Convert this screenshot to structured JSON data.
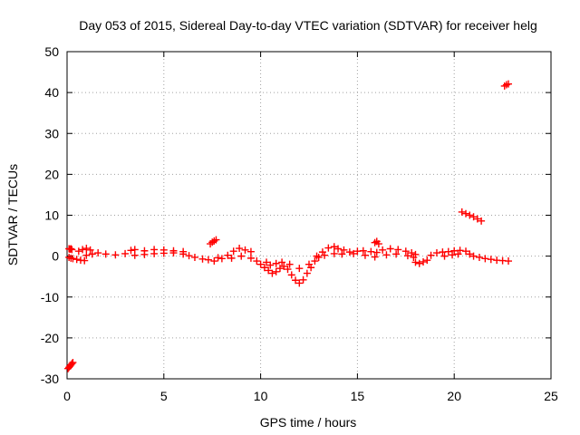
{
  "chart_data": {
    "type": "scatter",
    "title": "Day 053 of 2015, Sidereal Day-to-day VTEC variation (SDTVAR) for receiver helg",
    "xlabel": "GPS time / hours",
    "ylabel": "SDTVAR / TECUs",
    "xlim": [
      0,
      25
    ],
    "ylim": [
      -30,
      50
    ],
    "xticks": [
      0,
      5,
      10,
      15,
      20,
      25
    ],
    "yticks": [
      -30,
      -20,
      -10,
      0,
      10,
      20,
      30,
      40,
      50
    ],
    "grid": true,
    "marker": "plus",
    "series": [
      {
        "name": "SDTVAR",
        "color": "#ff0000",
        "points": [
          [
            0.05,
            -27.5
          ],
          [
            0.1,
            -27.2
          ],
          [
            0.15,
            -26.9
          ],
          [
            0.2,
            -26.6
          ],
          [
            0.25,
            -26.3
          ],
          [
            0.3,
            -26.0
          ],
          [
            0.1,
            1.8
          ],
          [
            0.15,
            1.7
          ],
          [
            0.2,
            1.8
          ],
          [
            0.25,
            1.6
          ],
          [
            0.1,
            -0.3
          ],
          [
            0.2,
            -0.5
          ],
          [
            0.3,
            -0.6
          ],
          [
            0.5,
            -0.8
          ],
          [
            0.7,
            -1.0
          ],
          [
            0.9,
            -1.1
          ],
          [
            0.6,
            1.2
          ],
          [
            0.8,
            1.6
          ],
          [
            1.0,
            1.9
          ],
          [
            1.2,
            1.5
          ],
          [
            1.0,
            0.2
          ],
          [
            1.3,
            0.5
          ],
          [
            1.6,
            0.8
          ],
          [
            2.0,
            0.5
          ],
          [
            2.5,
            0.3
          ],
          [
            3.0,
            0.6
          ],
          [
            3.3,
            1.4
          ],
          [
            3.5,
            1.6
          ],
          [
            4.0,
            1.3
          ],
          [
            4.5,
            1.6
          ],
          [
            5.0,
            1.5
          ],
          [
            5.5,
            1.3
          ],
          [
            6.0,
            1.1
          ],
          [
            3.5,
            0.2
          ],
          [
            4.0,
            0.4
          ],
          [
            4.5,
            0.6
          ],
          [
            5.0,
            0.7
          ],
          [
            5.5,
            0.8
          ],
          [
            6.0,
            0.5
          ],
          [
            6.3,
            0.1
          ],
          [
            6.6,
            -0.3
          ],
          [
            7.0,
            -0.7
          ],
          [
            7.3,
            -0.9
          ],
          [
            7.6,
            -1.2
          ],
          [
            7.4,
            3.0
          ],
          [
            7.5,
            3.4
          ],
          [
            7.6,
            3.7
          ],
          [
            7.7,
            4.0
          ],
          [
            7.8,
            -0.4
          ],
          [
            8.0,
            -0.6
          ],
          [
            8.3,
            0.2
          ],
          [
            8.6,
            1.2
          ],
          [
            8.9,
            1.9
          ],
          [
            9.2,
            1.5
          ],
          [
            9.5,
            1.1
          ],
          [
            8.5,
            -0.5
          ],
          [
            9.0,
            0.0
          ],
          [
            9.5,
            -0.5
          ],
          [
            9.8,
            -1.2
          ],
          [
            10.0,
            -2.0
          ],
          [
            10.2,
            -2.8
          ],
          [
            10.4,
            -3.5
          ],
          [
            10.6,
            -4.2
          ],
          [
            10.8,
            -3.8
          ],
          [
            11.0,
            -3.0
          ],
          [
            11.2,
            -2.5
          ],
          [
            11.4,
            -3.2
          ],
          [
            11.6,
            -4.6
          ],
          [
            11.8,
            -5.9
          ],
          [
            12.0,
            -6.6
          ],
          [
            12.2,
            -5.8
          ],
          [
            12.4,
            -4.2
          ],
          [
            12.6,
            -2.8
          ],
          [
            10.3,
            -1.5
          ],
          [
            10.5,
            -2.2
          ],
          [
            10.8,
            -1.8
          ],
          [
            11.1,
            -1.5
          ],
          [
            11.5,
            -2.0
          ],
          [
            12.0,
            -3.0
          ],
          [
            12.5,
            -2.0
          ],
          [
            12.8,
            -1.2
          ],
          [
            13.0,
            -0.3
          ],
          [
            13.2,
            1.0
          ],
          [
            13.5,
            2.0
          ],
          [
            13.8,
            2.3
          ],
          [
            12.9,
            0.0
          ],
          [
            13.3,
            0.2
          ],
          [
            13.8,
            0.6
          ],
          [
            14.0,
            1.8
          ],
          [
            14.3,
            1.5
          ],
          [
            14.6,
            1.0
          ],
          [
            15.0,
            1.2
          ],
          [
            15.3,
            1.3
          ],
          [
            15.7,
            1.1
          ],
          [
            16.0,
            0.9
          ],
          [
            14.2,
            0.5
          ],
          [
            14.8,
            0.6
          ],
          [
            15.4,
            0.2
          ],
          [
            15.9,
            -0.2
          ],
          [
            15.9,
            3.3
          ],
          [
            16.0,
            3.6
          ],
          [
            16.1,
            3.0
          ],
          [
            16.3,
            1.5
          ],
          [
            16.7,
            1.8
          ],
          [
            17.1,
            1.6
          ],
          [
            17.5,
            1.2
          ],
          [
            17.8,
            0.8
          ],
          [
            18.0,
            0.4
          ],
          [
            16.5,
            0.3
          ],
          [
            17.0,
            0.5
          ],
          [
            17.6,
            0.1
          ],
          [
            17.9,
            -0.3
          ],
          [
            18.0,
            -1.5
          ],
          [
            18.2,
            -1.8
          ],
          [
            18.4,
            -1.4
          ],
          [
            18.6,
            -1.0
          ],
          [
            18.8,
            0.2
          ],
          [
            19.1,
            0.8
          ],
          [
            19.4,
            1.0
          ],
          [
            19.7,
            1.1
          ],
          [
            20.0,
            1.3
          ],
          [
            20.3,
            1.4
          ],
          [
            20.6,
            1.2
          ],
          [
            19.5,
            0.0
          ],
          [
            19.9,
            0.3
          ],
          [
            20.2,
            0.5
          ],
          [
            20.8,
            0.5
          ],
          [
            21.0,
            0.0
          ],
          [
            21.3,
            -0.3
          ],
          [
            21.6,
            -0.6
          ],
          [
            21.9,
            -0.8
          ],
          [
            22.2,
            -1.0
          ],
          [
            22.5,
            -1.1
          ],
          [
            22.8,
            -1.2
          ],
          [
            20.4,
            10.8
          ],
          [
            20.6,
            10.4
          ],
          [
            20.8,
            10.0
          ],
          [
            21.0,
            9.6
          ],
          [
            21.2,
            9.1
          ],
          [
            21.4,
            8.6
          ],
          [
            22.6,
            41.6
          ],
          [
            22.7,
            41.9
          ],
          [
            22.8,
            42.1
          ]
        ]
      }
    ]
  }
}
